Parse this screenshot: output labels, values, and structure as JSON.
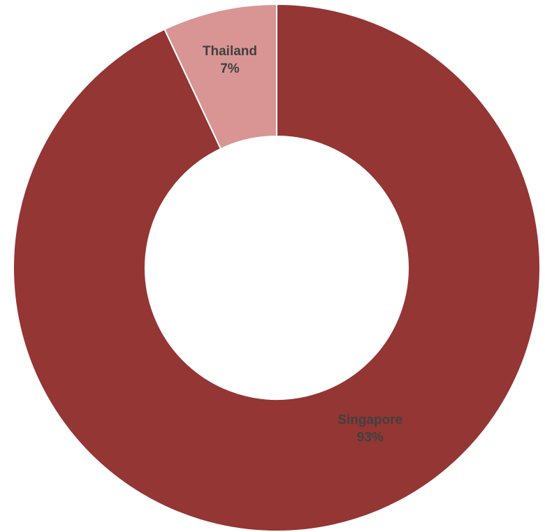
{
  "chart_data": {
    "type": "pie",
    "variant": "donut",
    "categories": [
      "Singapore",
      "Thailand"
    ],
    "values": [
      93,
      7
    ],
    "value_labels": [
      "93%",
      "7%"
    ],
    "colors": [
      "#943634",
      "#D99594"
    ],
    "title": "",
    "legend": "none",
    "data_labels": true
  }
}
